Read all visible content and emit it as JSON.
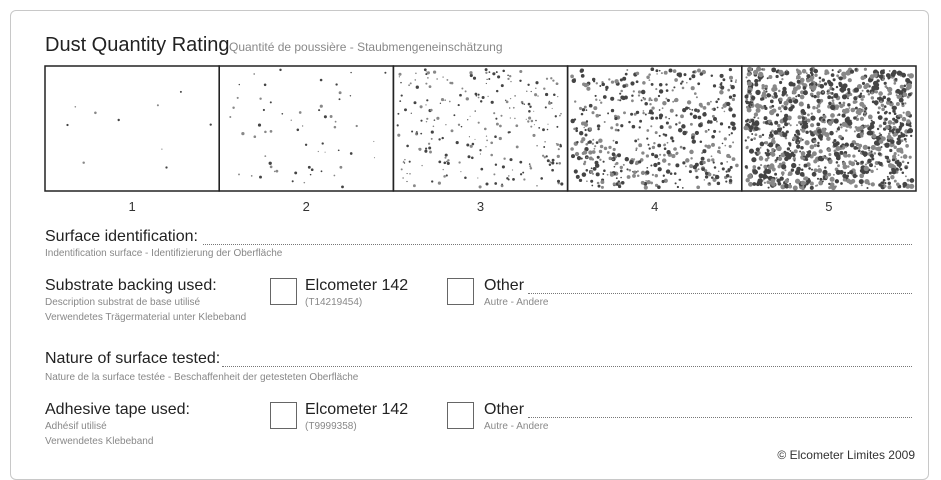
{
  "header": {
    "title": "Dust Quantity Rating",
    "subtitle": "Quantité de poussière - Staubmengeneinschätzung"
  },
  "ratings": [
    "1",
    "2",
    "3",
    "4",
    "5"
  ],
  "fields": {
    "surface_identification": {
      "label": "Surface identification:",
      "sublabels": [
        "Indentification surface - Identifizierung der Oberfläche"
      ]
    },
    "substrate_backing": {
      "label": "Substrate backing used:",
      "sublabels": [
        "Description substrat de base utilisé",
        "Verwendetes Trägermaterial unter Klebeband"
      ],
      "option1": {
        "label": "Elcometer 142",
        "code": "(T14219454)"
      },
      "option2": {
        "label": "Other",
        "sublabel": "Autre - Andere"
      }
    },
    "nature_of_surface": {
      "label": "Nature of surface tested:",
      "sublabels": [
        "Nature de la surface testée - Beschaffenheit der getesteten Oberfläche"
      ]
    },
    "adhesive_tape": {
      "label": "Adhesive tape used:",
      "sublabels": [
        "Adhésif utilisé",
        "Verwendetes Klebeband"
      ],
      "option1": {
        "label": "Elcometer 142",
        "code": "(T9999358)"
      },
      "option2": {
        "label": "Other",
        "sublabel": "Autre - Andere"
      }
    }
  },
  "footer": {
    "copyright": "© Elcometer Limites 2009"
  }
}
